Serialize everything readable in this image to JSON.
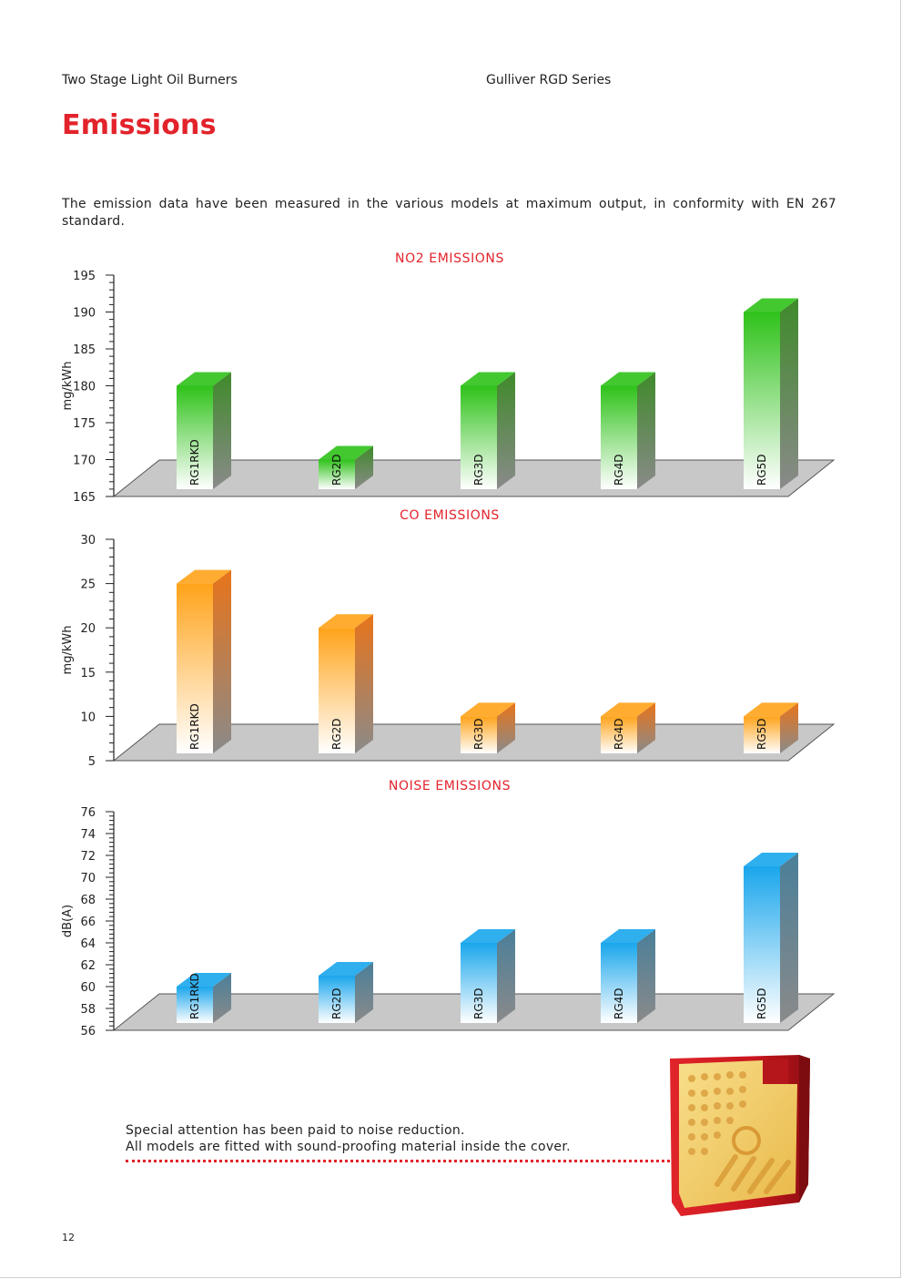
{
  "header": {
    "left": "Two Stage Light Oil Burners",
    "right": "Gulliver RGD Series"
  },
  "page_title": "Emissions",
  "intro": "The emission data have been measured in the various models at maximum output, in conformity with EN 267 standard.",
  "chart_data": [
    {
      "type": "bar",
      "title": "NO2 EMISSIONS",
      "ylabel": "mg/kWh",
      "xlabel": "",
      "categories": [
        "RG1RKD",
        "RG2D",
        "RG3D",
        "RG4D",
        "RG5D"
      ],
      "values": [
        180,
        170,
        180,
        180,
        190
      ],
      "ylim": [
        165,
        195
      ],
      "yticks": [
        165,
        170,
        175,
        180,
        185,
        190,
        195
      ],
      "color_top": "#2fc21a",
      "color_bottom": "#ffffff",
      "color_side": "#3f8a2a",
      "grid": false,
      "legend": "none"
    },
    {
      "type": "bar",
      "title": "CO EMISSIONS",
      "ylabel": "mg/kWh",
      "xlabel": "",
      "categories": [
        "RG1RKD",
        "RG2D",
        "RG3D",
        "RG4D",
        "RG5D"
      ],
      "values": [
        25,
        20,
        10,
        10,
        10
      ],
      "ylim": [
        5,
        30
      ],
      "yticks": [
        5,
        10,
        15,
        20,
        25,
        30
      ],
      "color_top": "#ffa31a",
      "color_bottom": "#ffffff",
      "color_side": "#e8741a",
      "grid": false,
      "legend": "none"
    },
    {
      "type": "bar",
      "title": "NOISE EMISSIONS",
      "ylabel": "dB(A)",
      "xlabel": "",
      "categories": [
        "RG1RKD",
        "RG2D",
        "RG3D",
        "RG4D",
        "RG5D"
      ],
      "values": [
        60,
        61,
        64,
        64,
        71
      ],
      "ylim": [
        56,
        76
      ],
      "yticks": [
        56,
        58,
        60,
        62,
        64,
        66,
        68,
        70,
        72,
        74,
        76
      ],
      "color_top": "#1aa6ec",
      "color_bottom": "#ffffff",
      "color_side": "#4a7f99",
      "grid": false,
      "legend": "none"
    }
  ],
  "note": {
    "line1": "Special attention has been paid to noise reduction.",
    "line2": "All models are fitted with sound-proofing material inside the cover."
  },
  "cover_image": {
    "icon": "soundproof-cover-icon",
    "shell_color": "#c8161d",
    "foam_color": "#f3cf6a"
  },
  "page_number": "12"
}
